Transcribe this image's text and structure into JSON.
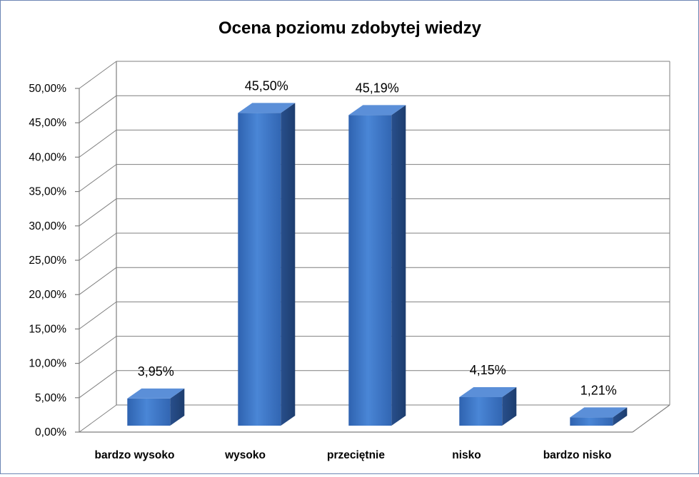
{
  "chart_data": {
    "type": "bar",
    "title": "Ocena poziomu zdobytej wiedzy",
    "categories": [
      "bardzo wysoko",
      "wysoko",
      "przeciętnie",
      "nisko",
      "bardzo nisko"
    ],
    "values": [
      3.95,
      45.5,
      45.19,
      4.15,
      1.21
    ],
    "data_labels": [
      "3,95%",
      "45,50%",
      "45,19%",
      "4,15%",
      "1,21%"
    ],
    "y_ticks": [
      "0,00%",
      "5,00%",
      "10,00%",
      "15,00%",
      "20,00%",
      "25,00%",
      "30,00%",
      "35,00%",
      "40,00%",
      "45,00%",
      "50,00%"
    ],
    "ylim": [
      0,
      50
    ],
    "xlabel": "",
    "ylabel": "",
    "grid": true,
    "legend": "none",
    "style": "3d-column",
    "colors": {
      "bar_front": "#3a73c6",
      "bar_top": "#5b8fd8",
      "bar_side": "#23477f",
      "grid": "#7f7f7f",
      "border": "#6d86b4"
    }
  }
}
